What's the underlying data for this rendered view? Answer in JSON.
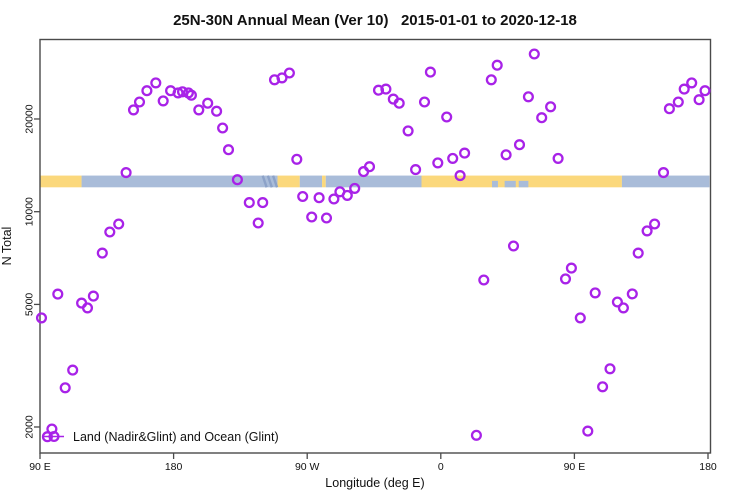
{
  "chart_data": {
    "type": "scatter",
    "title": "25N-30N Annual Mean (Ver 10)   2015-01-01 to 2020-12-18",
    "xlabel": "Longitude (deg E)",
    "ylabel": "N Total",
    "x_axis": {
      "note": "longitude axis wraps eastward: 90E -> 180 -> 90W -> 0 -> 90E -> 180; stored as continuous deg 90..540",
      "domain_deg": [
        90,
        540
      ],
      "ticks": [
        {
          "deg": 90,
          "label": "90 E"
        },
        {
          "deg": 180,
          "label": "180"
        },
        {
          "deg": 270,
          "label": "90 W"
        },
        {
          "deg": 360,
          "label": "0"
        },
        {
          "deg": 450,
          "label": "90 E"
        },
        {
          "deg": 540,
          "label": "180"
        }
      ]
    },
    "y_axis": {
      "scale": "log10",
      "ylim": [
        1620,
        36000
      ],
      "ticks": [
        {
          "value": 2000,
          "label": "2000"
        },
        {
          "value": 5000,
          "label": "5000"
        },
        {
          "value": 10000,
          "label": "10000"
        },
        {
          "value": 20000,
          "label": "20000"
        }
      ]
    },
    "legend": {
      "label": "Land (Nadir&Glint) and Ocean (Glint)",
      "marker": "open-circle-with-line"
    },
    "colors": {
      "point": "#A822E8",
      "land": "#FBD87C",
      "ocean": "#A9BCD9",
      "map_detail": "#8CA2C8",
      "frame": "#4A4A4A",
      "background": "#FFFFFF"
    },
    "map_band": {
      "description": "world coastline strip for 25N-30N drawn across plot at N ~ 12000-13100",
      "n_top": 13100,
      "n_bottom": 12000,
      "segments": [
        {
          "from": 90,
          "to": 118,
          "type": "land"
        },
        {
          "from": 118,
          "to": 250,
          "type": "ocean"
        },
        {
          "from": 250,
          "to": 265,
          "type": "land"
        },
        {
          "from": 265,
          "to": 280,
          "type": "ocean"
        },
        {
          "from": 280,
          "to": 282.5,
          "type": "land"
        },
        {
          "from": 282.5,
          "to": 347,
          "type": "ocean"
        },
        {
          "from": 347,
          "to": 482,
          "type": "land"
        },
        {
          "from": 482,
          "to": 541,
          "type": "ocean"
        }
      ],
      "dark_streaks_deg": [
        240,
        243.5,
        247
      ],
      "water_patches": [
        {
          "from": 394.5,
          "to": 398.5
        },
        {
          "from": 403,
          "to": 410.5
        },
        {
          "from": 412.5,
          "to": 419
        }
      ]
    },
    "series": [
      {
        "name": "Land (Nadir&Glint) and Ocean (Glint)",
        "marker": "open-circle",
        "points": [
          [
            153,
            21400
          ],
          [
            157,
            22700
          ],
          [
            162,
            24700
          ],
          [
            168,
            26200
          ],
          [
            173,
            22900
          ],
          [
            178,
            24700
          ],
          [
            183,
            24300
          ],
          [
            186,
            24500
          ],
          [
            190,
            24300
          ],
          [
            192,
            23900
          ],
          [
            197,
            21400
          ],
          [
            203,
            22500
          ],
          [
            209,
            21200
          ],
          [
            213,
            18700
          ],
          [
            217,
            15900
          ],
          [
            148,
            13400
          ],
          [
            223,
            12700
          ],
          [
            248,
            26800
          ],
          [
            253,
            27200
          ],
          [
            258,
            28200
          ],
          [
            318,
            24800
          ],
          [
            323,
            25000
          ],
          [
            328,
            23200
          ],
          [
            332,
            22500
          ],
          [
            349,
            22700
          ],
          [
            353,
            28400
          ],
          [
            364,
            20300
          ],
          [
            338,
            18300
          ],
          [
            263,
            14800
          ],
          [
            308,
            13500
          ],
          [
            312,
            14000
          ],
          [
            358,
            14400
          ],
          [
            368,
            14900
          ],
          [
            376,
            15500
          ],
          [
            343,
            13700
          ],
          [
            373,
            13100
          ],
          [
            302,
            11900
          ],
          [
            423,
            32500
          ],
          [
            398,
            29900
          ],
          [
            394,
            26800
          ],
          [
            419,
            23600
          ],
          [
            434,
            21900
          ],
          [
            428,
            20200
          ],
          [
            413,
            16500
          ],
          [
            404,
            15300
          ],
          [
            439,
            14900
          ],
          [
            514,
            21600
          ],
          [
            520,
            22700
          ],
          [
            524,
            25000
          ],
          [
            529,
            26200
          ],
          [
            534,
            23100
          ],
          [
            538,
            24700
          ],
          [
            510,
            13400
          ],
          [
            137,
            8590
          ],
          [
            143,
            9120
          ],
          [
            132,
            7340
          ],
          [
            102,
            5400
          ],
          [
            118,
            5050
          ],
          [
            122,
            4870
          ],
          [
            126,
            5320
          ],
          [
            231,
            10700
          ],
          [
            240,
            10700
          ],
          [
            237,
            9190
          ],
          [
            267,
            11200
          ],
          [
            278,
            11100
          ],
          [
            288,
            11000
          ],
          [
            292,
            11600
          ],
          [
            297,
            11300
          ],
          [
            273,
            9610
          ],
          [
            283,
            9540
          ],
          [
            409,
            7740
          ],
          [
            504,
            9120
          ],
          [
            499,
            8660
          ],
          [
            493,
            7340
          ],
          [
            448,
            6560
          ],
          [
            444,
            6050
          ],
          [
            389,
            6000
          ],
          [
            464,
            5450
          ],
          [
            489,
            5410
          ],
          [
            479,
            5090
          ],
          [
            483,
            4870
          ],
          [
            454,
            4520
          ],
          [
            91,
            4520
          ],
          [
            112,
            3060
          ],
          [
            107,
            2680
          ],
          [
            98,
            1970
          ],
          [
            95,
            1860
          ],
          [
            474,
            3090
          ],
          [
            469,
            2700
          ],
          [
            459,
            1940
          ],
          [
            384,
            1880
          ]
        ]
      }
    ]
  }
}
